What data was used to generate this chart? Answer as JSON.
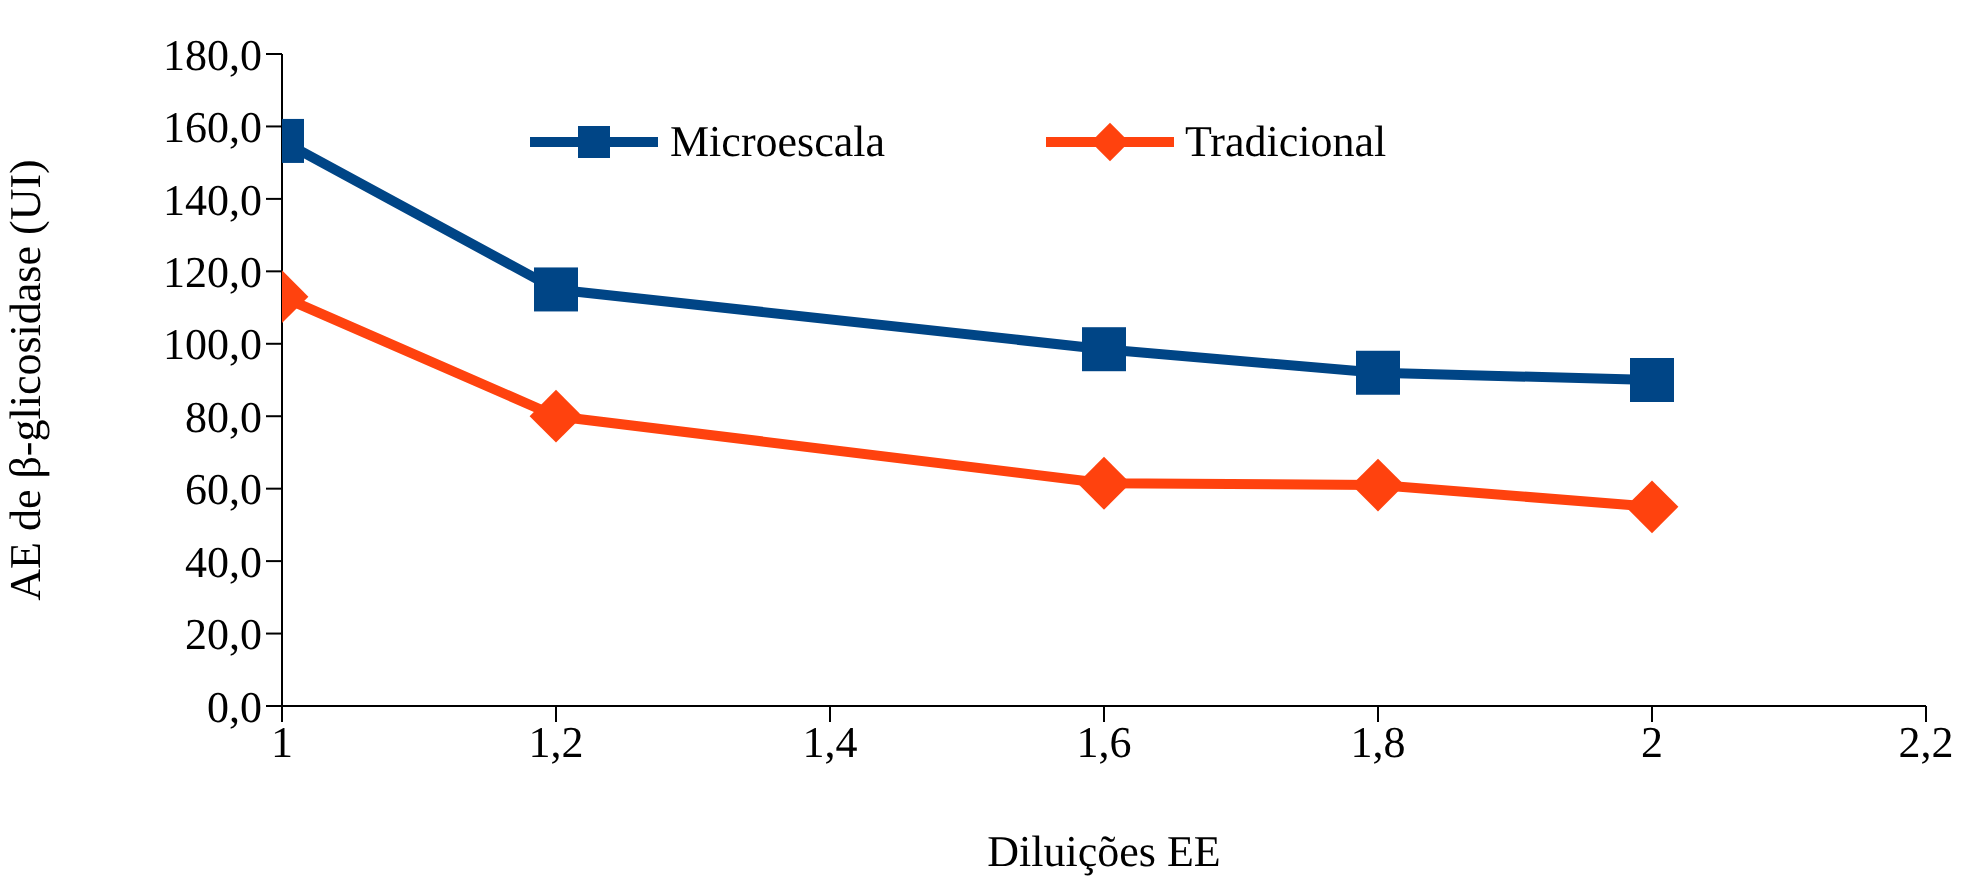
{
  "chart_data": {
    "type": "line",
    "xlabel": "Diluições EE",
    "ylabel": "AE de β-glicosidase (UI)",
    "x": [
      1,
      1.2,
      1.6,
      1.8,
      2
    ],
    "series": [
      {
        "name": "Microescala",
        "color": "#004586",
        "marker": "square",
        "values": [
          156,
          115,
          98.5,
          92,
          90
        ]
      },
      {
        "name": "Tradicional",
        "color": "#ff420e",
        "marker": "diamond",
        "values": [
          113,
          80,
          61.5,
          61,
          55
        ]
      }
    ],
    "xlim": [
      1,
      2.2
    ],
    "xticks": [
      1,
      {
        "value": 1.2,
        "label": "1,2"
      },
      {
        "value": 1.4,
        "label": "1,4"
      },
      {
        "value": 1.6,
        "label": "1,6"
      },
      {
        "value": 1.8,
        "label": "1,8"
      },
      2,
      {
        "value": 2.2,
        "label": "2,2"
      }
    ],
    "ylim": [
      0,
      180
    ],
    "yticks": [
      {
        "value": 0,
        "label": "0,0"
      },
      {
        "value": 20,
        "label": "20,0"
      },
      {
        "value": 40,
        "label": "40,0"
      },
      {
        "value": 60,
        "label": "60,0"
      },
      {
        "value": 80,
        "label": "80,0"
      },
      {
        "value": 100,
        "label": "100,0"
      },
      {
        "value": 120,
        "label": "120,0"
      },
      {
        "value": 140,
        "label": "140,0"
      },
      {
        "value": 160,
        "label": "160,0"
      },
      {
        "value": 180,
        "label": "180,0"
      }
    ],
    "grid": false,
    "legend": "top",
    "line_style": "solid"
  }
}
